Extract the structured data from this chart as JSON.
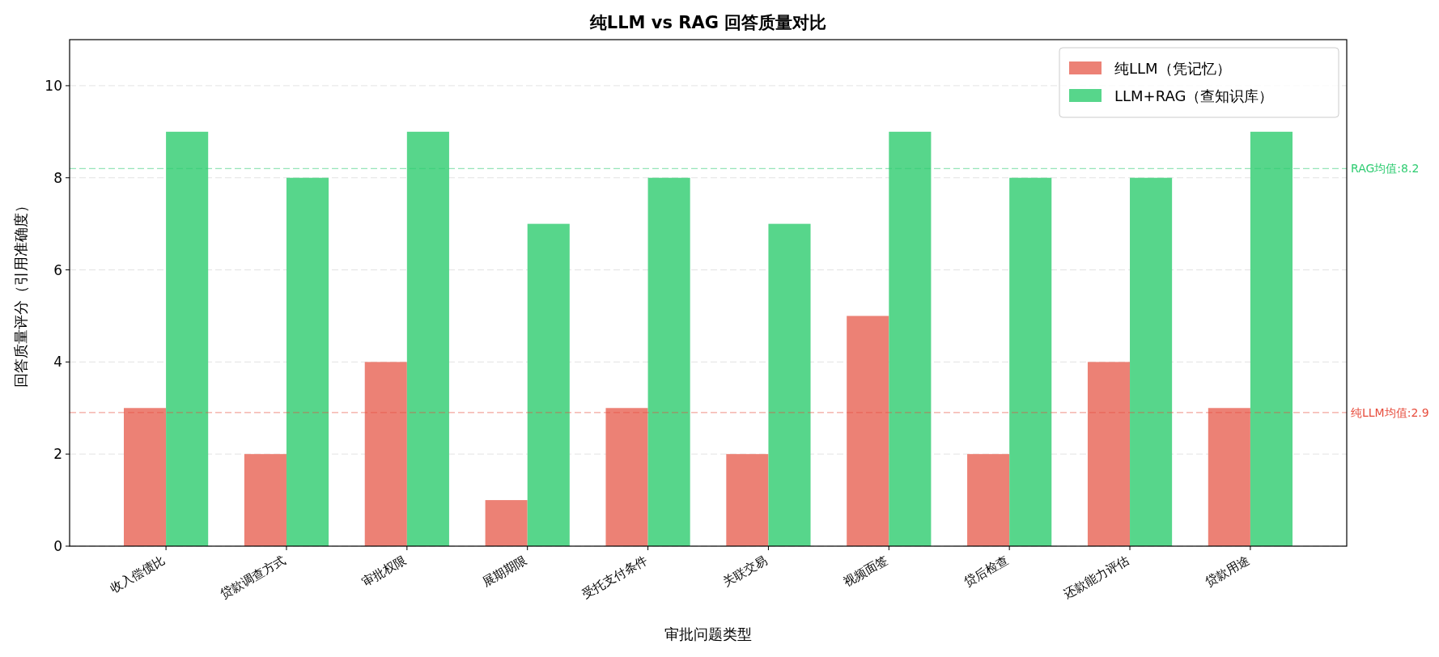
{
  "chart_data": {
    "type": "bar",
    "title": "纯LLM vs RAG 回答质量对比",
    "xlabel": "审批问题类型",
    "ylabel": "回答质量评分（引用准确度）",
    "categories": [
      "收入偿债比",
      "贷款调查方式",
      "审批权限",
      "展期期限",
      "受托支付条件",
      "关联交易",
      "视频面签",
      "贷后检查",
      "还款能力评估",
      "贷款用途"
    ],
    "series": [
      {
        "name": "纯LLM（凭记忆）",
        "color": "#ec8175",
        "values": [
          3,
          2,
          4,
          1,
          3,
          2,
          5,
          2,
          4,
          3
        ]
      },
      {
        "name": "LLM+RAG（查知识库）",
        "color": "#57d68b",
        "values": [
          9,
          8,
          9,
          7,
          8,
          7,
          9,
          8,
          8,
          9
        ]
      }
    ],
    "ylim": [
      0,
      11
    ],
    "yticks": [
      0,
      2,
      4,
      6,
      8,
      10
    ],
    "grid": "y",
    "legend": "top right",
    "ref_lines": [
      {
        "axis": "y",
        "value": 8.2,
        "label": "RAG均值:8.2",
        "color": "#2ecc71",
        "line_style": "dashed"
      },
      {
        "axis": "y",
        "value": 2.9,
        "label": "纯LLM均值:2.9",
        "color": "#e74c3c",
        "line_style": "dashed"
      }
    ]
  }
}
